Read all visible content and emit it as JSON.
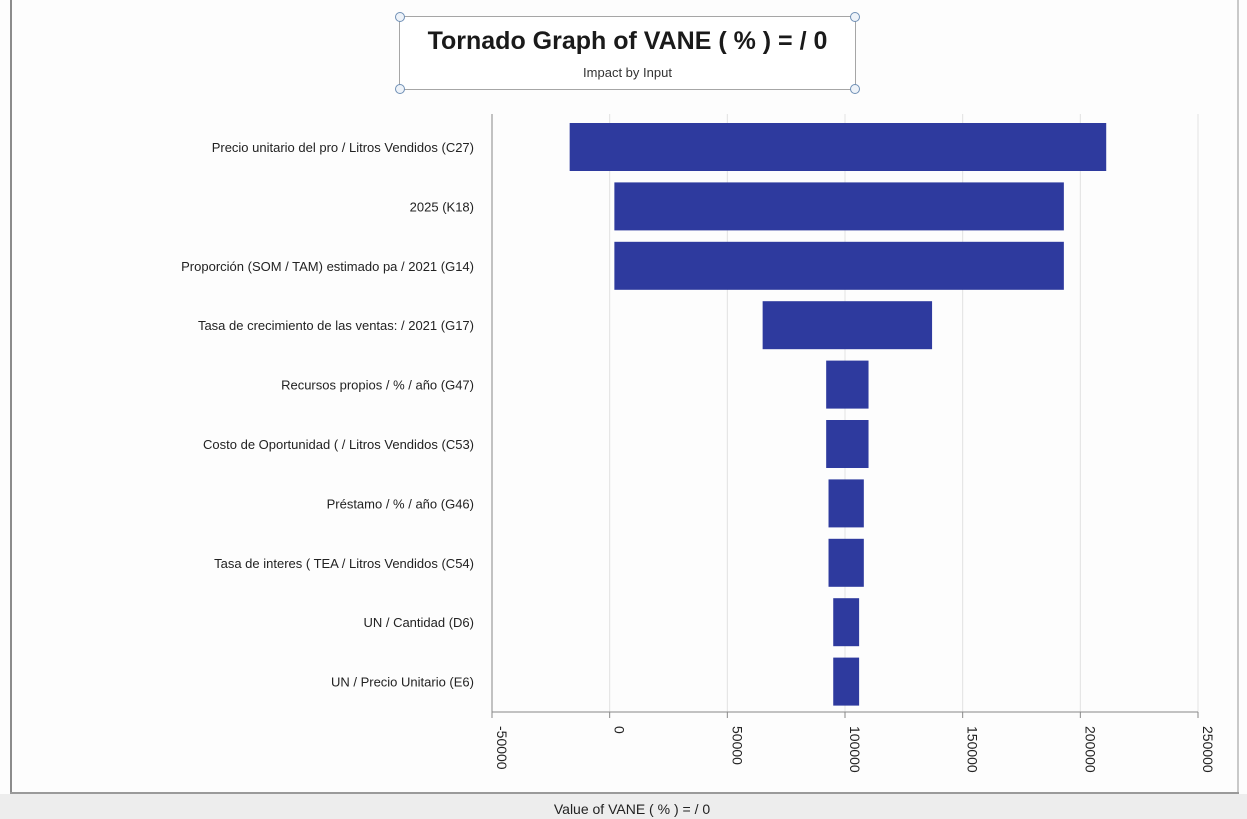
{
  "colors": {
    "bar": "#2e3a9e",
    "grid": "#e2e2e2",
    "axis": "#888888",
    "text": "#222222"
  },
  "chart_data": {
    "type": "bar",
    "orientation": "horizontal",
    "title": "Tornado Graph of VANE  ( % ) = / 0",
    "subtitle": "Impact by Input",
    "xlabel": "Value of VANE  ( % ) = / 0",
    "xlim": [
      -50000,
      250000
    ],
    "xticks": [
      "-50000",
      "0",
      "50000",
      "100000",
      "150000",
      "200000",
      "250000"
    ],
    "xtick_values": [
      -50000,
      0,
      50000,
      100000,
      150000,
      200000,
      250000
    ],
    "grid": true,
    "categories": [
      "Precio unitario del pro / Litros Vendidos (C27)",
      "2025 (K18)",
      "Proporción (SOM / TAM) estimado pa / 2021 (G14)",
      "Tasa de crecimiento de las ventas: / 2021 (G17)",
      "Recursos propios / % / año (G47)",
      "Costo de Oportunidad  ( / Litros Vendidos (C53)",
      "Préstamo / % / año (G46)",
      "Tasa de interes  ( TEA  / Litros Vendidos (C54)",
      "UN / Cantidad (D6)",
      "UN / Precio Unitario (E6)"
    ],
    "series": [
      {
        "low": [
          -17000,
          2000,
          2000,
          65000,
          92000,
          92000,
          93000,
          93000,
          95000,
          95000
        ],
        "high": [
          211000,
          193000,
          193000,
          137000,
          110000,
          110000,
          108000,
          108000,
          106000,
          106000
        ]
      }
    ]
  }
}
